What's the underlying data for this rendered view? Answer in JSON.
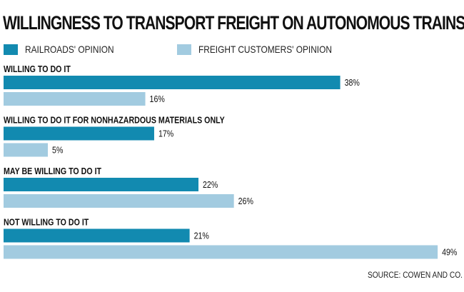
{
  "chart_data": {
    "type": "bar",
    "orientation": "horizontal",
    "title": "WILLINGNESS TO TRANSPORT FREIGHT ON AUTONOMOUS TRAINS",
    "categories": [
      "WILLING TO DO IT",
      "WILLING TO DO IT FOR NONHAZARDOUS MATERIALS ONLY",
      "MAY BE WILLING TO DO IT",
      "NOT WILLING TO DO IT"
    ],
    "series": [
      {
        "name": "RAILROADS' OPINION",
        "color": "#128ab0",
        "values": [
          38,
          17,
          22,
          21
        ]
      },
      {
        "name": "FREIGHT CUSTOMERS' OPINION",
        "color": "#a2cbe0",
        "values": [
          16,
          5,
          26,
          49
        ]
      }
    ],
    "value_suffix": "%",
    "xlim": [
      0,
      50
    ],
    "grid": false,
    "legend": "top-left",
    "source": "SOURCE: COWEN AND CO."
  }
}
